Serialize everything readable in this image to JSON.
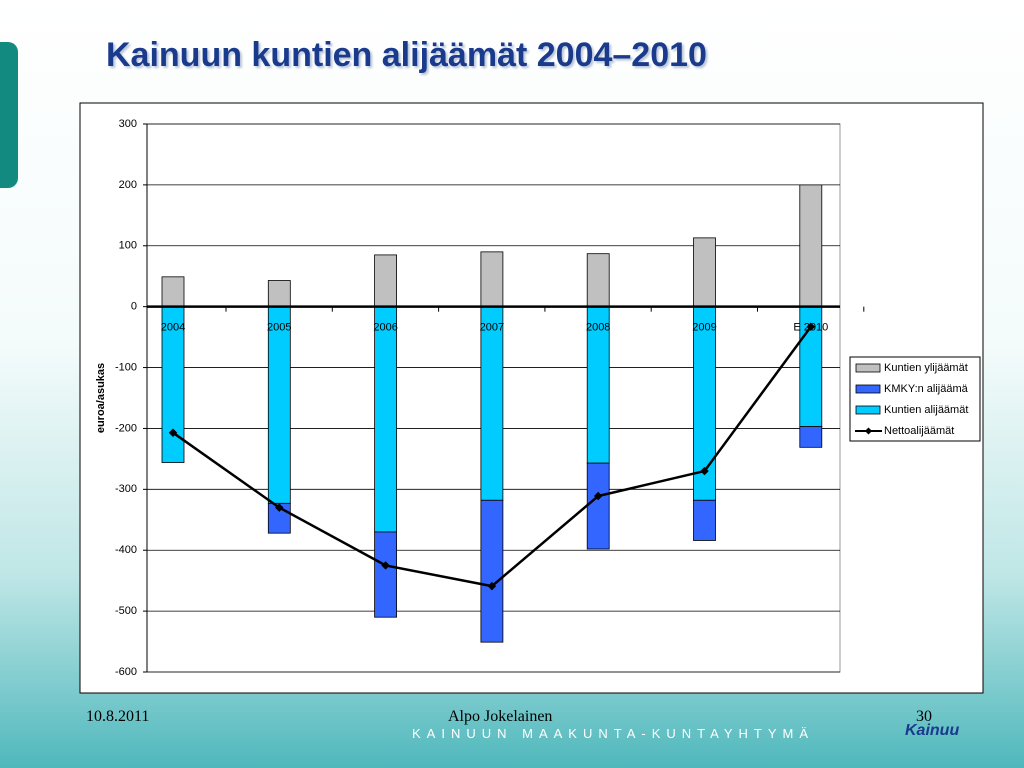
{
  "chart_data": {
    "type": "bar",
    "title": "Kainuun kuntien alijäämät 2004–2010",
    "y_label": "euroa/asukas",
    "categories": [
      "2004",
      "2005",
      "2006",
      "2007",
      "2008",
      "2009",
      "E 2010"
    ],
    "ylim": [
      -600,
      300
    ],
    "yticks": [
      -600,
      -500,
      -400,
      -300,
      -200,
      -100,
      0,
      100,
      200,
      300
    ],
    "grid": true,
    "legend": "right",
    "series": [
      {
        "name": "Kuntien ylijäämät",
        "type": "bar",
        "color": "#c0c0c0",
        "values": [
          49,
          43,
          85,
          90,
          87,
          113,
          200
        ]
      },
      {
        "name": "KMKY:n alijäämä",
        "type": "bar",
        "color": "#3366ff",
        "values": [
          0,
          -49,
          -140,
          -233,
          -141,
          -66,
          -34
        ]
      },
      {
        "name": "Kuntien alijäämät",
        "type": "bar",
        "color": "#00ccff",
        "values": [
          -256,
          -323,
          -370,
          -318,
          -257,
          -318,
          -197
        ]
      },
      {
        "name": "Nettoalijäämät",
        "type": "line",
        "color": "#000000",
        "values": [
          -207,
          -330,
          -425,
          -459,
          -311,
          -270,
          -33
        ]
      }
    ]
  },
  "footer": {
    "date": "10.8.2011",
    "author": "Alpo Jokelainen",
    "page": "30",
    "organization": "KAINUUN MAAKUNTA-KUNTAYHTYMÄ",
    "logo": "Kainuu"
  }
}
